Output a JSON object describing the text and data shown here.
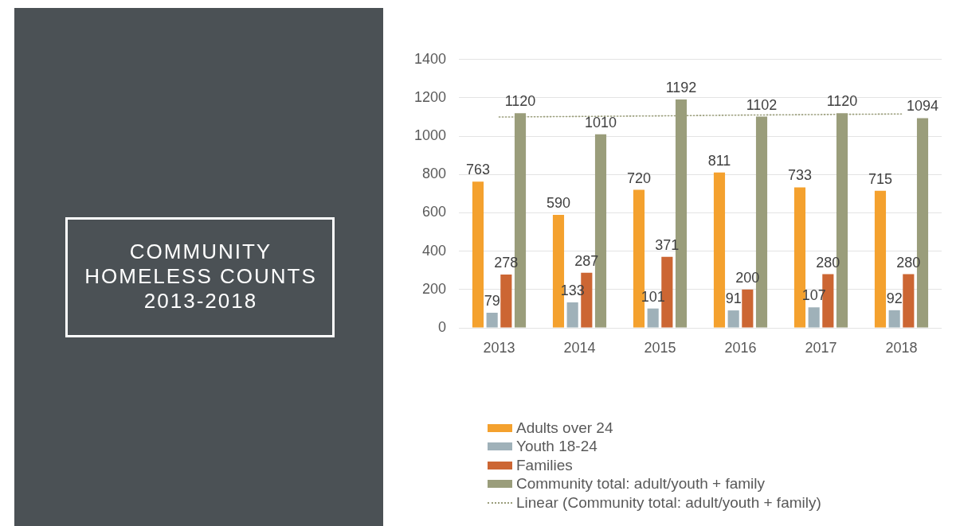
{
  "chart_data": {
    "type": "bar",
    "title": "COMMUNITY HOMELESS COUNTS 2013-2018",
    "categories": [
      "2013",
      "2014",
      "2015",
      "2016",
      "2017",
      "2018"
    ],
    "series": [
      {
        "name": "Adults over 24",
        "color": "#f4a12e",
        "values": [
          763,
          590,
          720,
          811,
          733,
          715
        ],
        "value_labels": [
          "763",
          "590",
          "720",
          "811",
          "733",
          "715"
        ]
      },
      {
        "name": "Youth 18-24",
        "color": "#9fb1b9",
        "values": [
          79,
          133,
          101,
          91,
          107,
          92
        ],
        "value_labels": [
          "79",
          "133",
          "101",
          "91",
          "107",
          "92"
        ]
      },
      {
        "name": "Families",
        "color": "#cc6633",
        "values": [
          278,
          287,
          371,
          200,
          280,
          280
        ],
        "value_labels": [
          "278",
          "287",
          "371",
          "200",
          "280",
          "280"
        ]
      },
      {
        "name": "Community total: adult/youth + family",
        "color": "#9a9d7b",
        "values": [
          1120,
          1010,
          1192,
          1102,
          1120,
          1094
        ],
        "value_labels": [
          "1120",
          "1010",
          "1192",
          "1102",
          "1120",
          "1094"
        ]
      },
      {
        "name": "Linear (Community total: adult/youth + family)",
        "type": "line",
        "color": "#9a9d7b",
        "values": [
          1100,
          1103,
          1106,
          1110,
          1113,
          1116
        ],
        "line_style": "dotted",
        "marker": "none"
      }
    ],
    "ylim": [
      0,
      1400
    ],
    "yticks": [
      0,
      200,
      400,
      600,
      800,
      1000,
      1200,
      1400
    ],
    "grid": "y",
    "legend": "bottom"
  }
}
